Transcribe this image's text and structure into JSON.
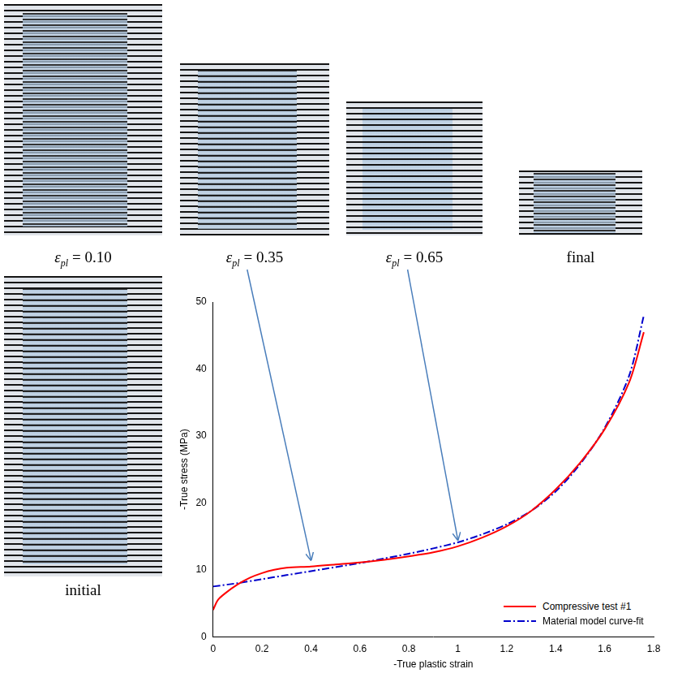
{
  "chart_data": {
    "type": "line",
    "x_label": "-True plastic strain",
    "y_label": "-True stress (MPa)",
    "xlim": [
      0,
      1.8
    ],
    "xticks": [
      0,
      0.2,
      0.4,
      0.6,
      0.8,
      1,
      1.2,
      1.4,
      1.6,
      1.8
    ],
    "ylim": [
      0,
      50
    ],
    "yticks": [
      0,
      10,
      20,
      30,
      40,
      50
    ],
    "grid": false,
    "legend": "bottom-right",
    "series": [
      {
        "name": "Compressive test #1",
        "color": "#ff0000",
        "line_style": "solid",
        "x": [
          0,
          0.02,
          0.05,
          0.1,
          0.15,
          0.2,
          0.25,
          0.3,
          0.4,
          0.5,
          0.6,
          0.7,
          0.8,
          0.9,
          1.0,
          1.1,
          1.2,
          1.3,
          1.4,
          1.5,
          1.6,
          1.7,
          1.76
        ],
        "values": [
          4,
          5.5,
          6.5,
          7.8,
          8.8,
          9.5,
          10,
          10.3,
          10.5,
          10.8,
          11.1,
          11.5,
          12,
          12.6,
          13.5,
          14.8,
          16.5,
          18.8,
          22,
          26,
          31,
          38,
          45.5
        ]
      },
      {
        "name": "Material model curve-fit",
        "color": "#0000cc",
        "line_style": "dashdot",
        "x": [
          0,
          0.1,
          0.2,
          0.3,
          0.4,
          0.5,
          0.6,
          0.7,
          0.8,
          0.9,
          1.0,
          1.1,
          1.2,
          1.3,
          1.4,
          1.5,
          1.6,
          1.7,
          1.76
        ],
        "values": [
          7.5,
          8,
          8.6,
          9.2,
          9.8,
          10.4,
          11,
          11.7,
          12.4,
          13.2,
          14.1,
          15.3,
          16.8,
          18.8,
          21.7,
          25.8,
          31.2,
          39,
          48
        ]
      }
    ]
  },
  "photos": [
    {
      "caption": {
        "symbol": "ε",
        "subscript": "pl",
        "text": " = 0.10"
      }
    },
    {
      "caption": {
        "symbol": "ε",
        "subscript": "pl",
        "text": " = 0.35"
      }
    },
    {
      "caption": {
        "symbol": "ε",
        "subscript": "pl",
        "text": " = 0.65"
      }
    },
    {
      "caption": {
        "text": "final"
      }
    },
    {
      "caption": {
        "text": "initial"
      }
    }
  ]
}
